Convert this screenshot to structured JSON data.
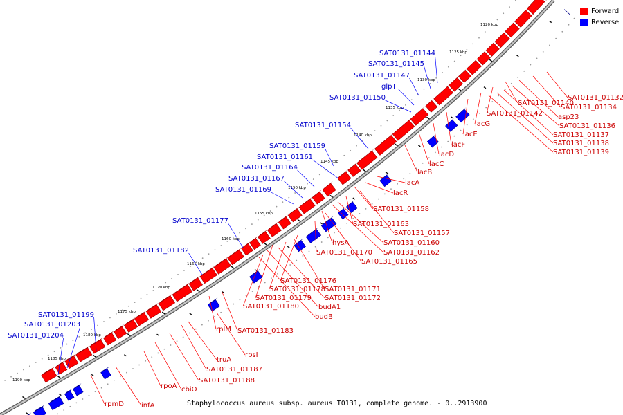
{
  "legend": {
    "forward_label": "Forward",
    "reverse_label": "Reverse",
    "forward_color": "#ff0000",
    "reverse_color": "#0000ff"
  },
  "caption": "Staphylococcus aureus subsp. aureus T0131, complete genome. - 0..2913900",
  "scale_labels": [
    "1120 kbp",
    "1125 kbp",
    "1130 kbp",
    "1135 kbp",
    "1140 kbp",
    "1145 kbp",
    "1150 kbp",
    "1155 kbp",
    "1160 kbp",
    "1165 kbp",
    "1170 kbp",
    "1175 kbp",
    "1180 kbp",
    "1185 kbp",
    "1190 kbp"
  ],
  "reverse_gene_labels": [
    "SAT0131_01144",
    "SAT0131_01145",
    "SAT0131_01147",
    "glpT",
    "SAT0131_01150",
    "SAT0131_01154",
    "SAT0131_01159",
    "SAT0131_01161",
    "SAT0131_01164",
    "SAT0131_01167",
    "SAT0131_01169",
    "SAT0131_01177",
    "SAT0131_01182",
    "SAT0131_01199",
    "SAT0131_01203",
    "SAT0131_01204"
  ],
  "forward_gene_labels": [
    "SAT0131_01132",
    "SAT0131_01134",
    "asp23",
    "SAT0131_01140",
    "SAT0131_01136",
    "SAT0131_01142",
    "SAT0131_01137",
    "lacG",
    "SAT0131_01138",
    "SAT0131_01139",
    "lacE",
    "lacF",
    "lacD",
    "lacC",
    "lacB",
    "lacA",
    "lacR",
    "SAT0131_01158",
    "SAT0131_01157",
    "SAT0131_01163",
    "SAT0131_01160",
    "hysA",
    "SAT0131_01162",
    "SAT0131_01170",
    "SAT0131_01165",
    "SAT0131_01176",
    "SAT0131_01178",
    "SAT0131_01171",
    "SAT0131_01179",
    "SAT0131_01172",
    "budA1",
    "SAT0131_01180",
    "budB",
    "rplM",
    "SAT0131_01183",
    "rpsI",
    "truA",
    "SAT0131_01187",
    "SAT0131_01188",
    "cbiO",
    "rpoA",
    "rpmD",
    "infA"
  ]
}
